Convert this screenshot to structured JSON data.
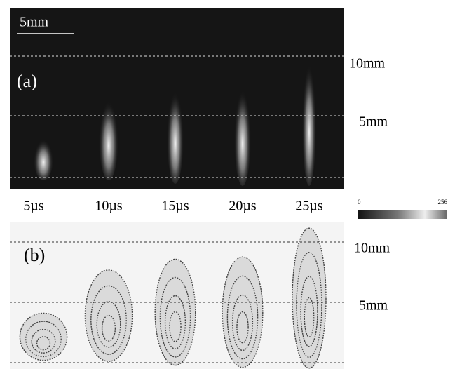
{
  "panel_a": {
    "label": "(a)",
    "scale_bar": "5mm",
    "height_labels": [
      "10mm",
      "5mm"
    ]
  },
  "time_labels": [
    "5µs",
    "10µs",
    "15µs",
    "20µs",
    "25µs"
  ],
  "colorbar": {
    "min": 0,
    "max": 256
  },
  "panel_b": {
    "label": "(b)",
    "height_labels": [
      "10mm",
      "5mm"
    ]
  }
}
